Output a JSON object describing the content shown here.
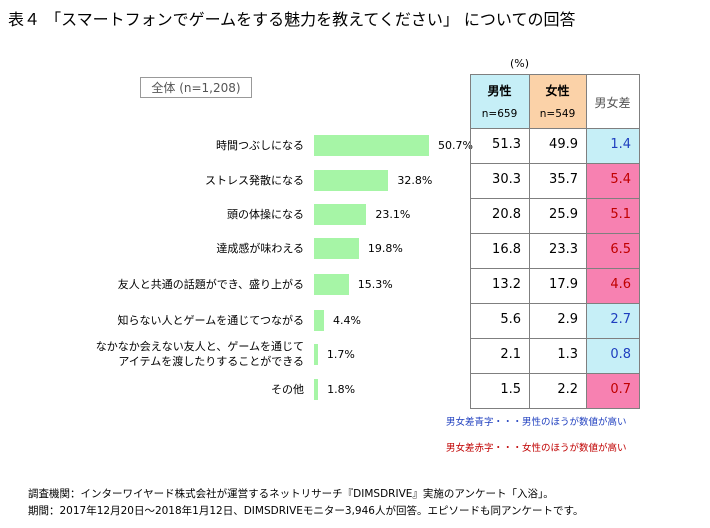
{
  "title": "表４ 「スマートフォンでゲームをする魅力を教えてください」 についての回答",
  "total_label": "全体 (n=1,208)",
  "unit_label": "(%)",
  "headers": {
    "male": "男性",
    "male_n": "n=659",
    "female": "女性",
    "female_n": "n=549",
    "diff": "男女差"
  },
  "colors": {
    "bar": "#a6f5a6",
    "male_header": "#c6eff7",
    "female_header": "#fbd2a8",
    "male_higher_bg": "#c6eff7",
    "female_higher_bg": "#f781b1",
    "male_higher_text": "#1f3fbf",
    "female_higher_text": "#c00000"
  },
  "chart_data": {
    "type": "bar",
    "orientation": "horizontal",
    "categories": [
      "時間つぶしになる",
      "ストレス発散になる",
      "頭の体操になる",
      "達成感が味わえる",
      "友人と共通の話題ができ、盛り上がる",
      "知らない人とゲームを通じてつながる",
      "なかなか会えない友人と、ゲームを通じてアイテムを渡したりすることができる",
      "その他"
    ],
    "category_lines": [
      [
        "時間つぶしになる"
      ],
      [
        "ストレス発散になる"
      ],
      [
        "頭の体操になる"
      ],
      [
        "達成感が味わえる"
      ],
      [
        "友人と共通の話題ができ、盛り上がる"
      ],
      [
        "知らない人とゲームを通じてつながる"
      ],
      [
        "なかなか会えない友人と、ゲームを通じて",
        "アイテムを渡したりすることができる"
      ],
      [
        "その他"
      ]
    ],
    "series": [
      {
        "values": [
          50.7,
          32.8,
          23.1,
          19.8,
          15.3,
          4.4,
          1.7,
          1.8
        ]
      }
    ],
    "value_labels": [
      "50.7%",
      "32.8%",
      "23.1%",
      "19.8%",
      "15.3%",
      "4.4%",
      "1.7%",
      "1.8%"
    ],
    "table": {
      "male": [
        "51.3",
        "30.3",
        "20.8",
        "16.8",
        "13.2",
        "5.6",
        "2.1",
        "1.5"
      ],
      "female": [
        "49.9",
        "35.7",
        "25.9",
        "23.3",
        "17.9",
        "2.9",
        "1.3",
        "2.2"
      ],
      "diff": [
        "1.4",
        "5.4",
        "5.1",
        "6.5",
        "4.6",
        "2.7",
        "0.8",
        "0.7"
      ],
      "diff_higher": [
        "male",
        "female",
        "female",
        "female",
        "female",
        "male",
        "male",
        "female"
      ]
    }
  },
  "legend": {
    "male": "男女差青字・・・男性のほうが数値が高い",
    "female": "男女差赤字・・・女性のほうが数値が高い"
  },
  "footer": {
    "line1": "調査機関：インターワイヤード株式会社が運営するネットリサーチ『DIMSDRIVE』実施のアンケート「入浴」。",
    "line2": "期間：2017年12月20日～2018年1月12日、DIMSDRIVEモニター3,946人が回答。エピソードも同アンケートです。"
  }
}
